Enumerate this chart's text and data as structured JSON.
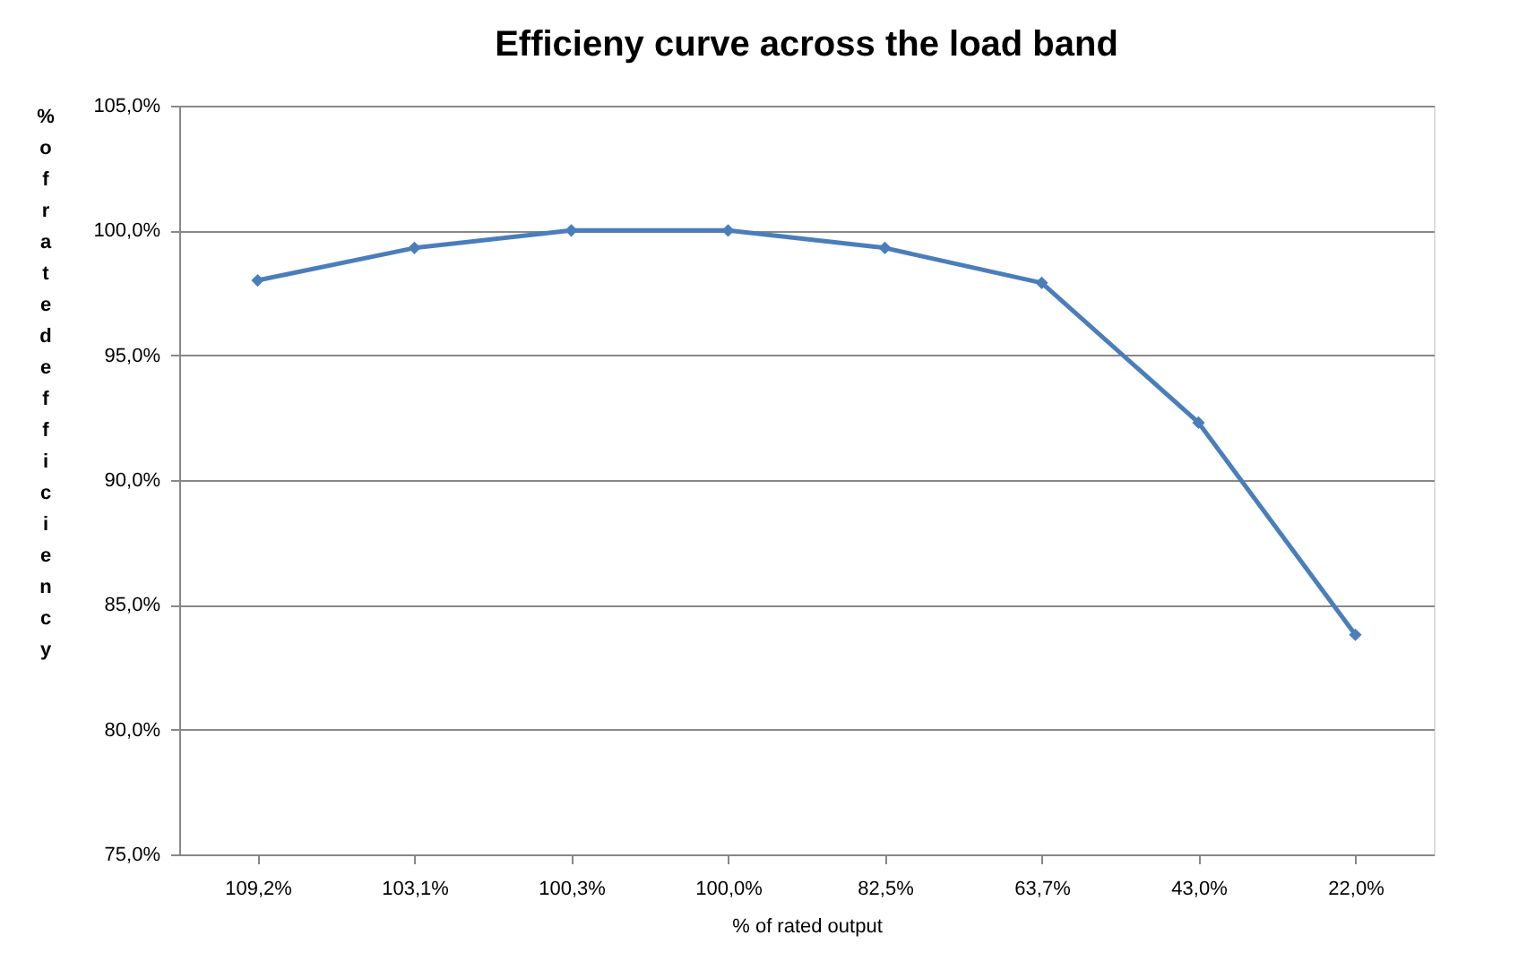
{
  "chart_data": {
    "type": "line",
    "title": "Efficieny curve across the load band",
    "xlabel": "% of rated output",
    "ylabel": "% of rated efficiency",
    "categories": [
      "109,2%",
      "103,1%",
      "100,3%",
      "100,0%",
      "82,5%",
      "63,7%",
      "43,0%",
      "22,0%"
    ],
    "series": [
      {
        "color": "#4a7ebb",
        "values": [
          98.0,
          99.3,
          100.0,
          100.0,
          99.3,
          97.9,
          92.3,
          83.8
        ]
      }
    ],
    "ylim": [
      75,
      105
    ],
    "yticks": [
      {
        "value": 75,
        "label": "75,0%"
      },
      {
        "value": 80,
        "label": "80,0%"
      },
      {
        "value": 85,
        "label": "85,0%"
      },
      {
        "value": 90,
        "label": "90,0%"
      },
      {
        "value": 95,
        "label": "95,0%"
      },
      {
        "value": 100,
        "label": "100,0%"
      },
      {
        "value": 105,
        "label": "105,0%"
      }
    ],
    "grid": "y",
    "marker": "diamond",
    "line_style": "solid"
  }
}
